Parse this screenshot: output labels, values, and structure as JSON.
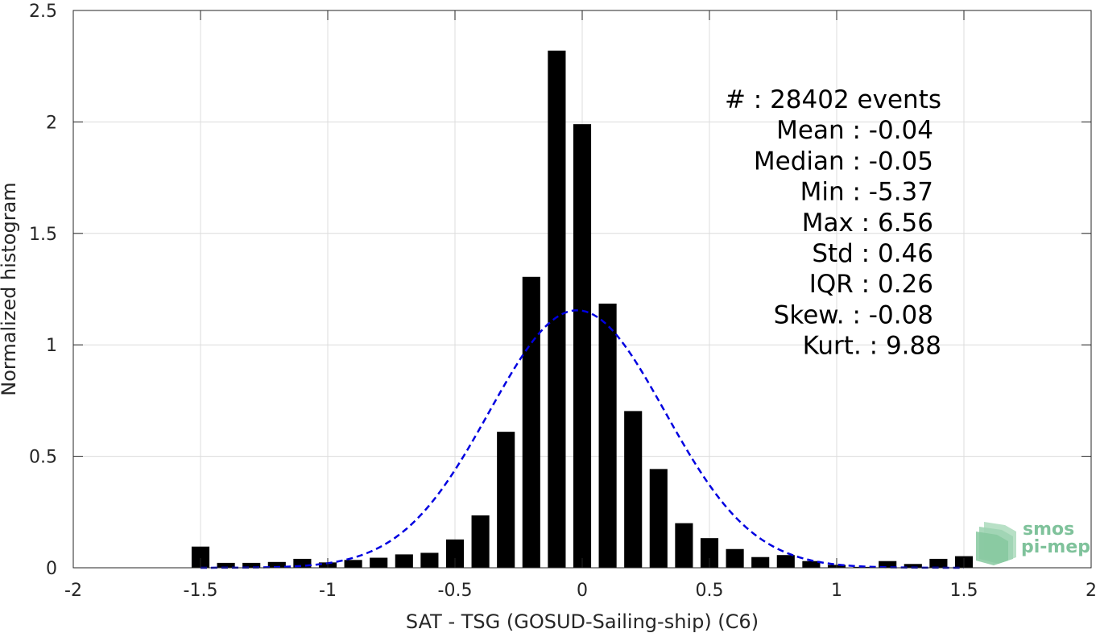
{
  "chart_data": {
    "type": "bar",
    "xlabel": "SAT - TSG (GOSUD-Sailing-ship) (C6)",
    "ylabel": "Normalized histogram",
    "xlim": [
      -2,
      2
    ],
    "ylim": [
      0,
      2.5
    ],
    "xticks": [
      -2,
      -1.5,
      -1,
      -0.5,
      0,
      0.5,
      1,
      1.5,
      2
    ],
    "xtick_labels": [
      "-2",
      "-1.5",
      "-1",
      "-0.5",
      "0",
      "0.5",
      "1",
      "1.5",
      "2"
    ],
    "yticks": [
      0,
      0.5,
      1,
      1.5,
      2,
      2.5
    ],
    "ytick_labels": [
      "0",
      "0.5",
      "1",
      "1.5",
      "2",
      "2.5"
    ],
    "grid": true,
    "bar_width": 0.07,
    "bar_color": "#000000",
    "series": [
      {
        "type": "bar",
        "x": [
          -1.5,
          -1.4,
          -1.3,
          -1.2,
          -1.1,
          -1.0,
          -0.9,
          -0.8,
          -0.7,
          -0.6,
          -0.5,
          -0.4,
          -0.3,
          -0.2,
          -0.1,
          0.0,
          0.1,
          0.2,
          0.3,
          0.4,
          0.5,
          0.6,
          0.7,
          0.8,
          0.9,
          1.0,
          1.1,
          1.2,
          1.3,
          1.4,
          1.5
        ],
        "values": [
          0.095,
          0.022,
          0.022,
          0.026,
          0.04,
          0.024,
          0.035,
          0.045,
          0.06,
          0.067,
          0.127,
          0.235,
          0.61,
          1.305,
          2.32,
          1.99,
          1.185,
          0.703,
          0.443,
          0.2,
          0.133,
          0.084,
          0.048,
          0.057,
          0.03,
          0.013,
          0.004,
          0.03,
          0.017,
          0.04,
          0.052
        ]
      },
      {
        "type": "line",
        "style": "dashed",
        "color": "#0000e0",
        "fit": "gaussian",
        "mu": -0.02,
        "sigma": 0.345,
        "peak": 1.155,
        "xrange": [
          -1.5,
          1.5
        ]
      }
    ],
    "stats": [
      {
        "label": "#  : 28402 events"
      },
      {
        "label": "Mean : -0.04"
      },
      {
        "label": "Median : -0.05"
      },
      {
        "label": "Min : -5.37"
      },
      {
        "label": "Max : 6.56"
      },
      {
        "label": "Std : 0.46"
      },
      {
        "label": "IQR : 0.26"
      },
      {
        "label": "Skew. : -0.08"
      },
      {
        "label": "Kurt. : 9.88"
      }
    ]
  },
  "logo": {
    "line1": "smos",
    "line2": "pi-mep",
    "color": "#7fc29b"
  }
}
